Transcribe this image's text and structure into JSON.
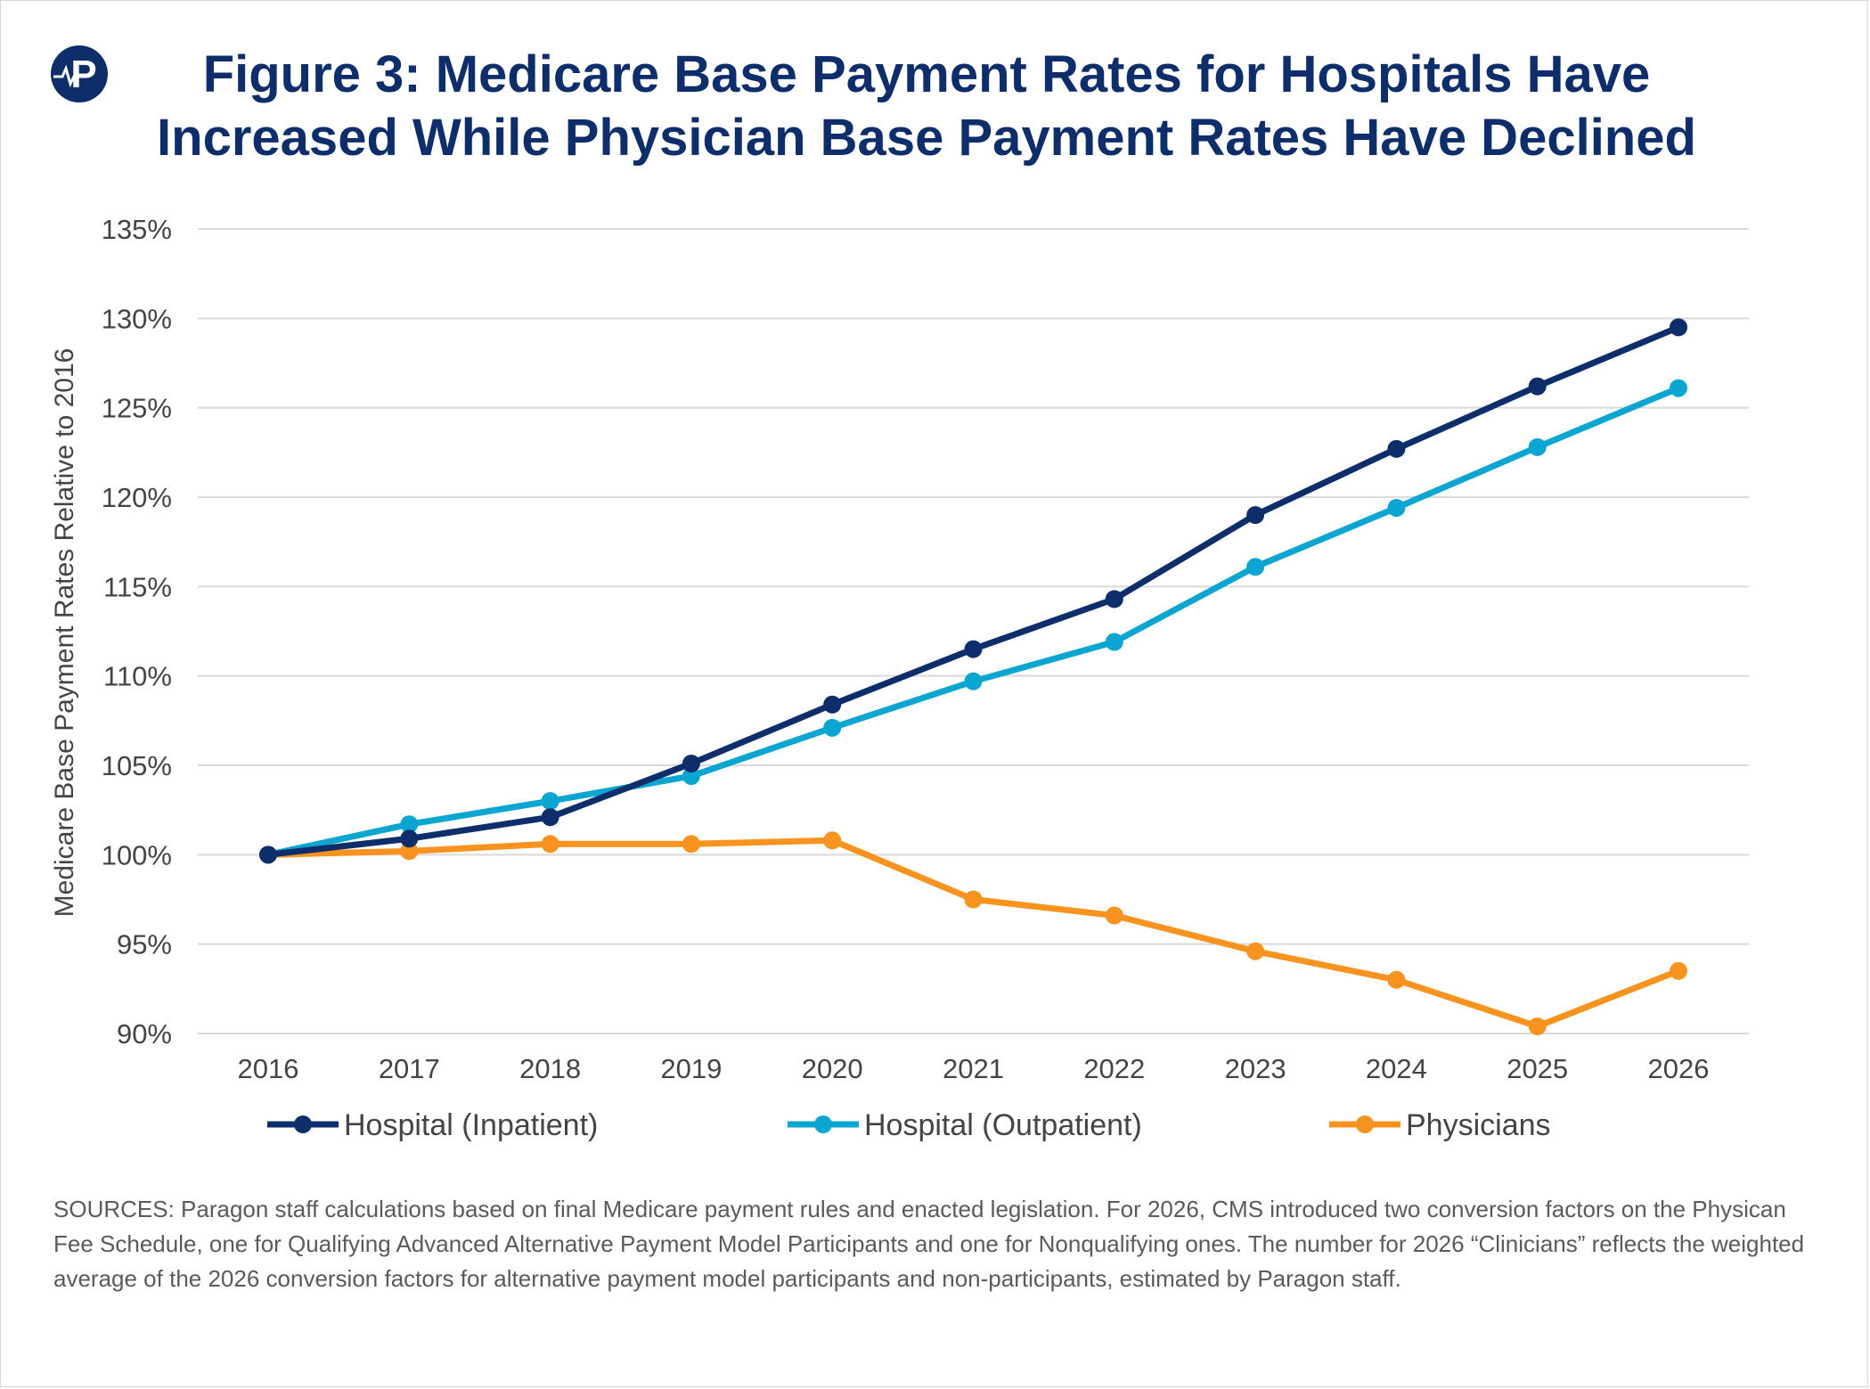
{
  "title_line1": "Figure 3: Medicare Base Payment Rates for Hospitals Have",
  "title_line2": "Increased While Physician Base Payment Rates Have Declined",
  "logo_letter": "P",
  "sources": "SOURCES: Paragon staff calculations based on final Medicare payment rules and enacted legislation. For 2026, CMS introduced two conversion factors on the Physican Fee Schedule, one for Qualifying Advanced Alternative Payment Model Participants and one for Nonqualifying ones. The number for 2026 “Clinicians” reflects the weighted average of the 2026 conversion factors for alternative payment model participants and non-participants, estimated by Paragon staff.",
  "colors": {
    "title": "#0d2e6b",
    "inpatient": "#0d2e6b",
    "outpatient": "#0aa6d1",
    "physicians": "#f7931e",
    "grid": "#d9d9d9"
  },
  "chart_data": {
    "type": "line",
    "title": "Figure 3: Medicare Base Payment Rates for Hospitals Have Increased While Physician Base Payment Rates Have Declined",
    "xlabel": "",
    "ylabel": "Medicare Base Payment Rates Relative to 2016",
    "x": [
      "2016",
      "2017",
      "2018",
      "2019",
      "2020",
      "2021",
      "2022",
      "2023",
      "2024",
      "2025",
      "2026"
    ],
    "ylim": [
      90,
      135
    ],
    "yticks": [
      90,
      95,
      100,
      105,
      110,
      115,
      120,
      125,
      130,
      135
    ],
    "ytick_labels": [
      "90%",
      "95%",
      "100%",
      "105%",
      "110%",
      "115%",
      "120%",
      "125%",
      "130%",
      "135%"
    ],
    "grid": true,
    "legend_position": "bottom",
    "series": [
      {
        "name": "Hospital (Inpatient)",
        "color": "#0d2e6b",
        "values": [
          100.0,
          100.9,
          102.1,
          105.1,
          108.4,
          111.5,
          114.3,
          119.0,
          122.7,
          126.2,
          129.5
        ]
      },
      {
        "name": "Hospital (Outpatient)",
        "color": "#0aa6d1",
        "values": [
          100.0,
          101.7,
          103.0,
          104.4,
          107.1,
          109.7,
          111.9,
          116.1,
          119.4,
          122.8,
          126.1
        ]
      },
      {
        "name": "Physicians",
        "color": "#f7931e",
        "values": [
          100.0,
          100.2,
          100.6,
          100.6,
          100.8,
          97.5,
          96.6,
          94.6,
          93.0,
          90.4,
          93.5
        ]
      }
    ]
  }
}
